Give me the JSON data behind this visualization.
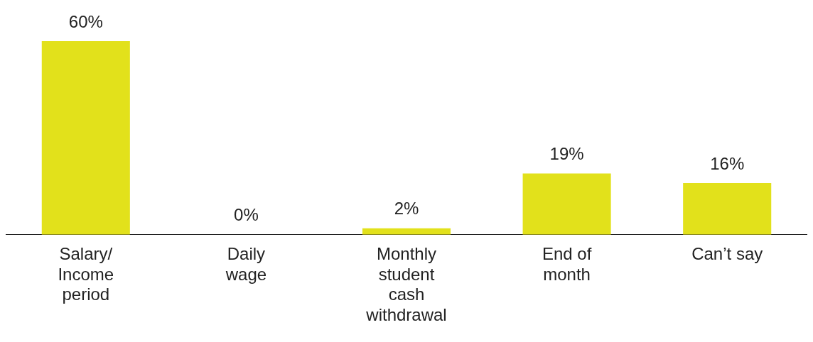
{
  "chart_data": {
    "type": "bar",
    "categories": [
      "Salary/ Income period",
      "Daily wage",
      "Monthly student cash withdrawal",
      "End of month",
      "Can’t say"
    ],
    "values": [
      60,
      0,
      2,
      19,
      16
    ],
    "value_labels": [
      "60%",
      "0%",
      "2%",
      "19%",
      "16%"
    ],
    "color": "#e2e11b",
    "grid": false,
    "legend": false
  }
}
